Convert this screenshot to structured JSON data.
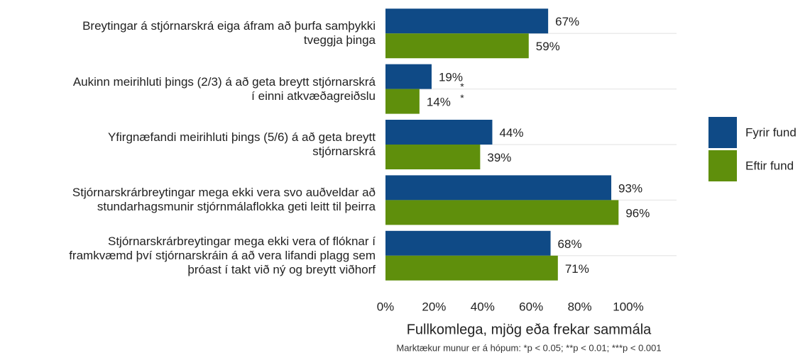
{
  "chart_data": {
    "type": "barh",
    "categories": [
      "Breytingar á stjórnarskrá eiga áfram að þurfa samþykki\ntveggja þinga",
      "Aukinn meirihluti þings (2/3) á að geta breytt stjórnarskrá\ní einni atkvæðagreiðslu",
      "Yfirgnæfandi meirihluti þings (5/6) á að geta breytt\nstjórnarskrá",
      "Stjórnarskrárbreytingar mega ekki vera svo auðveldar að\nstundarhagsmunir stjórnmálaflokka geti leitt til þeirra",
      "Stjórnarskrárbreytingar mega ekki vera of flóknar í\nframkvæmd því stjórnarskráin á að vera lifandi plagg sem\nþróast í takt við ný og breytt viðhorf"
    ],
    "series": [
      {
        "name": "Fyrir fund",
        "color": "#0f4a86",
        "values": [
          67,
          19,
          44,
          93,
          68
        ],
        "value_labels": [
          "67%",
          "19%",
          "44%",
          "93%",
          "68%"
        ]
      },
      {
        "name": "Eftir fund",
        "color": "#5f8f0c",
        "values": [
          59,
          14,
          39,
          96,
          71
        ],
        "value_labels": [
          "59%",
          "14%",
          "39%",
          "96%",
          "71%"
        ]
      }
    ],
    "xlim": [
      0,
      100
    ],
    "xticks": [
      {
        "value": 0,
        "label": "0%"
      },
      {
        "value": 20,
        "label": "20%"
      },
      {
        "value": 40,
        "label": "40%"
      },
      {
        "value": 60,
        "label": "60%"
      },
      {
        "value": 80,
        "label": "80%"
      },
      {
        "value": 100,
        "label": "100%"
      }
    ],
    "xlabel": "Fullkomlega, mjög eða frekar sammála",
    "annotation": "**",
    "footnote": "Marktækur munur er á hópum: *p < 0.05; **p < 0.01; ***p < 0.001",
    "legend": "right",
    "grid": true
  }
}
